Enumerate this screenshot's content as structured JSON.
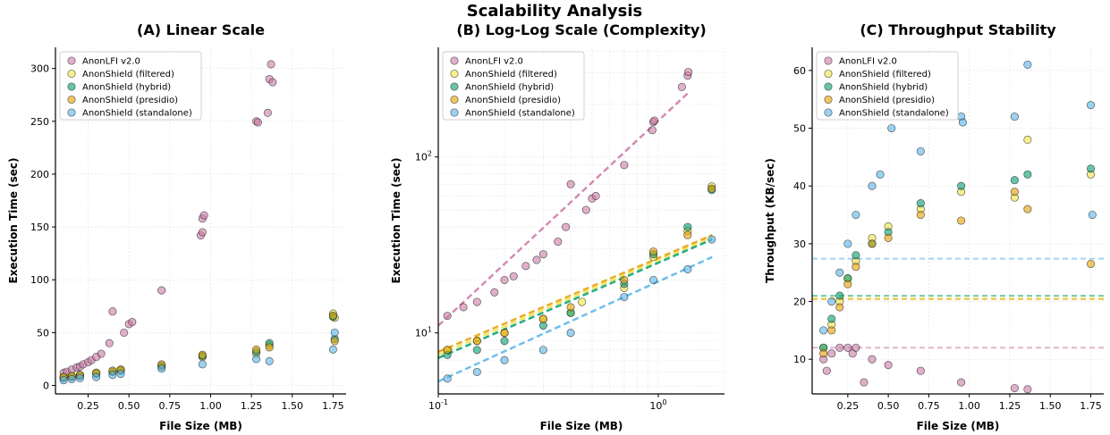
{
  "figure": {
    "title": "Scalability Analysis"
  },
  "colors": {
    "AnonLFI v2.0": "#cc79a7",
    "AnonShield (filtered)": "#f0e442",
    "AnonShield (hybrid)": "#009e73",
    "AnonShield (presidio)": "#e69f00",
    "AnonShield (standalone)": "#56b4e9"
  },
  "chart_data": [
    {
      "type": "scatter",
      "title": "(A) Linear Scale",
      "xlabel": "File Size (MB)",
      "ylabel": "Execution Time (sec)",
      "xlim": [
        0.05,
        1.83
      ],
      "ylim": [
        -8,
        320
      ],
      "x_ticks": [
        {
          "v": 0.25,
          "label": "0.25"
        },
        {
          "v": 0.5,
          "label": "0.50"
        },
        {
          "v": 0.75,
          "label": "0.75"
        },
        {
          "v": 1.0,
          "label": "1.00"
        },
        {
          "v": 1.25,
          "label": "1.25"
        },
        {
          "v": 1.5,
          "label": "1.50"
        },
        {
          "v": 1.75,
          "label": "1.75"
        }
      ],
      "y_ticks": [
        {
          "v": 0,
          "label": "0"
        },
        {
          "v": 50,
          "label": "50"
        },
        {
          "v": 100,
          "label": "100"
        },
        {
          "v": 150,
          "label": "150"
        },
        {
          "v": 200,
          "label": "200"
        },
        {
          "v": 250,
          "label": "250"
        },
        {
          "v": 300,
          "label": "300"
        }
      ],
      "grid": true,
      "legend_position": "top-left",
      "series": [
        {
          "name": "AnonLFI v2.0",
          "points": [
            [
              0.1,
              12
            ],
            [
              0.12,
              13
            ],
            [
              0.15,
              15
            ],
            [
              0.18,
              17
            ],
            [
              0.2,
              18
            ],
            [
              0.22,
              20
            ],
            [
              0.25,
              22
            ],
            [
              0.27,
              24
            ],
            [
              0.3,
              27
            ],
            [
              0.33,
              30
            ],
            [
              0.38,
              40
            ],
            [
              0.4,
              70
            ],
            [
              0.47,
              50
            ],
            [
              0.5,
              58
            ],
            [
              0.52,
              60
            ],
            [
              0.7,
              90
            ],
            [
              0.94,
              142
            ],
            [
              0.95,
              145
            ],
            [
              0.95,
              158
            ],
            [
              0.96,
              161
            ],
            [
              1.28,
              250
            ],
            [
              1.29,
              249
            ],
            [
              1.35,
              258
            ],
            [
              1.36,
              290
            ],
            [
              1.37,
              304
            ],
            [
              1.38,
              287
            ]
          ]
        },
        {
          "name": "AnonShield (filtered)",
          "points": [
            [
              0.1,
              8
            ],
            [
              0.15,
              9
            ],
            [
              0.2,
              10
            ],
            [
              0.3,
              12
            ],
            [
              0.4,
              13
            ],
            [
              0.45,
              15
            ],
            [
              0.7,
              18
            ],
            [
              0.95,
              27
            ],
            [
              1.28,
              30
            ],
            [
              1.36,
              38
            ],
            [
              1.75,
              68
            ],
            [
              1.76,
              64
            ]
          ]
        },
        {
          "name": "AnonShield (hybrid)",
          "points": [
            [
              0.1,
              7
            ],
            [
              0.15,
              8
            ],
            [
              0.2,
              9
            ],
            [
              0.3,
              11
            ],
            [
              0.4,
              13
            ],
            [
              0.45,
              14
            ],
            [
              0.7,
              19
            ],
            [
              0.95,
              28
            ],
            [
              1.28,
              32
            ],
            [
              1.36,
              40
            ],
            [
              1.75,
              65
            ],
            [
              1.76,
              44
            ]
          ]
        },
        {
          "name": "AnonShield (presidio)",
          "points": [
            [
              0.1,
              8
            ],
            [
              0.15,
              9
            ],
            [
              0.2,
              10
            ],
            [
              0.3,
              12
            ],
            [
              0.4,
              14
            ],
            [
              0.45,
              15
            ],
            [
              0.7,
              20
            ],
            [
              0.95,
              29
            ],
            [
              1.28,
              34
            ],
            [
              1.36,
              36
            ],
            [
              1.75,
              66
            ],
            [
              1.76,
              42
            ]
          ]
        },
        {
          "name": "AnonShield (standalone)",
          "points": [
            [
              0.1,
              5
            ],
            [
              0.15,
              6
            ],
            [
              0.2,
              7
            ],
            [
              0.3,
              8
            ],
            [
              0.4,
              10
            ],
            [
              0.45,
              11
            ],
            [
              0.7,
              16
            ],
            [
              0.95,
              20
            ],
            [
              1.28,
              25
            ],
            [
              1.36,
              23
            ],
            [
              1.75,
              34
            ],
            [
              1.76,
              50
            ]
          ]
        }
      ]
    },
    {
      "type": "scatter",
      "title": "(B) Log-Log Scale (Complexity)",
      "xlabel": "File Size (MB)",
      "ylabel": "Execution Time (sec)",
      "xscale": "log",
      "yscale": "log",
      "xlim": [
        0.1,
        2.0
      ],
      "ylim": [
        4.5,
        420
      ],
      "x_ticks": [
        {
          "v": 0.1,
          "label": "10^-1"
        },
        {
          "v": 1.0,
          "label": "10^0"
        }
      ],
      "y_ticks": [
        {
          "v": 10,
          "label": "10^1"
        },
        {
          "v": 100,
          "label": "10^2"
        }
      ],
      "grid": true,
      "legend_position": "top-left",
      "series": [
        {
          "name": "AnonLFI v2.0",
          "points": [
            [
              0.11,
              12.5
            ],
            [
              0.13,
              14
            ],
            [
              0.15,
              15
            ],
            [
              0.18,
              17
            ],
            [
              0.2,
              20
            ],
            [
              0.22,
              21
            ],
            [
              0.25,
              24
            ],
            [
              0.28,
              26
            ],
            [
              0.3,
              28
            ],
            [
              0.35,
              33
            ],
            [
              0.38,
              40
            ],
            [
              0.4,
              70
            ],
            [
              0.47,
              50
            ],
            [
              0.5,
              58
            ],
            [
              0.52,
              60
            ],
            [
              0.7,
              90
            ],
            [
              0.94,
              142
            ],
            [
              0.95,
              158
            ],
            [
              0.96,
              161
            ],
            [
              1.28,
              250
            ],
            [
              1.36,
              290
            ],
            [
              1.37,
              304
            ]
          ],
          "trend": [
            [
              0.1,
              11
            ],
            [
              1.36,
              230
            ]
          ]
        },
        {
          "name": "AnonShield (filtered)",
          "points": [
            [
              0.11,
              8
            ],
            [
              0.15,
              9
            ],
            [
              0.2,
              10
            ],
            [
              0.3,
              12
            ],
            [
              0.4,
              13
            ],
            [
              0.45,
              15
            ],
            [
              0.7,
              18
            ],
            [
              0.95,
              27
            ],
            [
              1.36,
              38
            ],
            [
              1.75,
              68
            ]
          ],
          "trend": [
            [
              0.1,
              7.5
            ],
            [
              1.76,
              35
            ]
          ]
        },
        {
          "name": "AnonShield (hybrid)",
          "points": [
            [
              0.11,
              7.5
            ],
            [
              0.15,
              8
            ],
            [
              0.2,
              9
            ],
            [
              0.3,
              11
            ],
            [
              0.4,
              13
            ],
            [
              0.7,
              19
            ],
            [
              0.95,
              28
            ],
            [
              1.36,
              40
            ],
            [
              1.75,
              65
            ]
          ],
          "trend": [
            [
              0.1,
              7.2
            ],
            [
              1.76,
              34
            ]
          ]
        },
        {
          "name": "AnonShield (presidio)",
          "points": [
            [
              0.11,
              8
            ],
            [
              0.15,
              9
            ],
            [
              0.2,
              10
            ],
            [
              0.3,
              12
            ],
            [
              0.4,
              14
            ],
            [
              0.7,
              20
            ],
            [
              0.95,
              29
            ],
            [
              1.36,
              36
            ],
            [
              1.75,
              66
            ]
          ],
          "trend": [
            [
              0.1,
              7.8
            ],
            [
              1.76,
              36
            ]
          ]
        },
        {
          "name": "AnonShield (standalone)",
          "points": [
            [
              0.11,
              5.5
            ],
            [
              0.15,
              6
            ],
            [
              0.2,
              7
            ],
            [
              0.3,
              8
            ],
            [
              0.4,
              10
            ],
            [
              0.7,
              16
            ],
            [
              0.95,
              20
            ],
            [
              1.36,
              23
            ],
            [
              1.75,
              34
            ]
          ],
          "trend": [
            [
              0.1,
              5.3
            ],
            [
              1.76,
              27
            ]
          ]
        }
      ]
    },
    {
      "type": "scatter",
      "title": "(C) Throughput Stability",
      "xlabel": "File Size (MB)",
      "ylabel": "Throughput (KB/sec)",
      "xlim": [
        0.03,
        1.83
      ],
      "ylim": [
        4,
        64
      ],
      "x_ticks": [
        {
          "v": 0.25,
          "label": "0.25"
        },
        {
          "v": 0.5,
          "label": "0.50"
        },
        {
          "v": 0.75,
          "label": "0.75"
        },
        {
          "v": 1.0,
          "label": "1.00"
        },
        {
          "v": 1.25,
          "label": "1.25"
        },
        {
          "v": 1.5,
          "label": "1.50"
        },
        {
          "v": 1.75,
          "label": "1.75"
        }
      ],
      "y_ticks": [
        {
          "v": 10,
          "label": "10"
        },
        {
          "v": 20,
          "label": "20"
        },
        {
          "v": 30,
          "label": "30"
        },
        {
          "v": 40,
          "label": "40"
        },
        {
          "v": 50,
          "label": "50"
        },
        {
          "v": 60,
          "label": "60"
        }
      ],
      "grid": true,
      "legend_position": "top-left",
      "series": [
        {
          "name": "AnonLFI v2.0",
          "points": [
            [
              0.1,
              10
            ],
            [
              0.12,
              8
            ],
            [
              0.15,
              11
            ],
            [
              0.2,
              12
            ],
            [
              0.25,
              12
            ],
            [
              0.28,
              11
            ],
            [
              0.3,
              12
            ],
            [
              0.35,
              6
            ],
            [
              0.4,
              10
            ],
            [
              0.5,
              9
            ],
            [
              0.7,
              8
            ],
            [
              0.95,
              6
            ],
            [
              1.28,
              5
            ],
            [
              1.36,
              4.8
            ]
          ],
          "mean": 12
        },
        {
          "name": "AnonShield (filtered)",
          "points": [
            [
              0.1,
              12
            ],
            [
              0.15,
              16
            ],
            [
              0.2,
              20
            ],
            [
              0.25,
              24
            ],
            [
              0.3,
              27
            ],
            [
              0.4,
              31
            ],
            [
              0.5,
              33
            ],
            [
              0.7,
              36
            ],
            [
              0.95,
              39
            ],
            [
              1.28,
              38
            ],
            [
              1.36,
              48
            ],
            [
              1.75,
              42
            ]
          ],
          "mean": 20.6
        },
        {
          "name": "AnonShield (hybrid)",
          "points": [
            [
              0.1,
              12
            ],
            [
              0.15,
              17
            ],
            [
              0.2,
              21
            ],
            [
              0.25,
              24
            ],
            [
              0.3,
              28
            ],
            [
              0.4,
              30
            ],
            [
              0.5,
              32
            ],
            [
              0.7,
              37
            ],
            [
              0.95,
              40
            ],
            [
              1.28,
              41
            ],
            [
              1.36,
              42
            ],
            [
              1.75,
              43
            ]
          ],
          "mean": 21
        },
        {
          "name": "AnonShield (presidio)",
          "points": [
            [
              0.1,
              11
            ],
            [
              0.15,
              15
            ],
            [
              0.2,
              19
            ],
            [
              0.25,
              23
            ],
            [
              0.3,
              26
            ],
            [
              0.4,
              30
            ],
            [
              0.5,
              31
            ],
            [
              0.7,
              35
            ],
            [
              0.95,
              34
            ],
            [
              1.28,
              39
            ],
            [
              1.36,
              36
            ],
            [
              1.75,
              26.5
            ]
          ],
          "mean": 20.4
        },
        {
          "name": "AnonShield (standalone)",
          "points": [
            [
              0.1,
              15
            ],
            [
              0.15,
              20
            ],
            [
              0.2,
              25
            ],
            [
              0.25,
              30
            ],
            [
              0.3,
              35
            ],
            [
              0.4,
              40
            ],
            [
              0.45,
              42
            ],
            [
              0.52,
              50
            ],
            [
              0.7,
              46
            ],
            [
              0.95,
              52
            ],
            [
              0.96,
              51
            ],
            [
              1.28,
              52
            ],
            [
              1.36,
              61
            ],
            [
              1.75,
              54
            ],
            [
              1.76,
              35
            ]
          ],
          "mean": 27.4
        }
      ]
    }
  ]
}
